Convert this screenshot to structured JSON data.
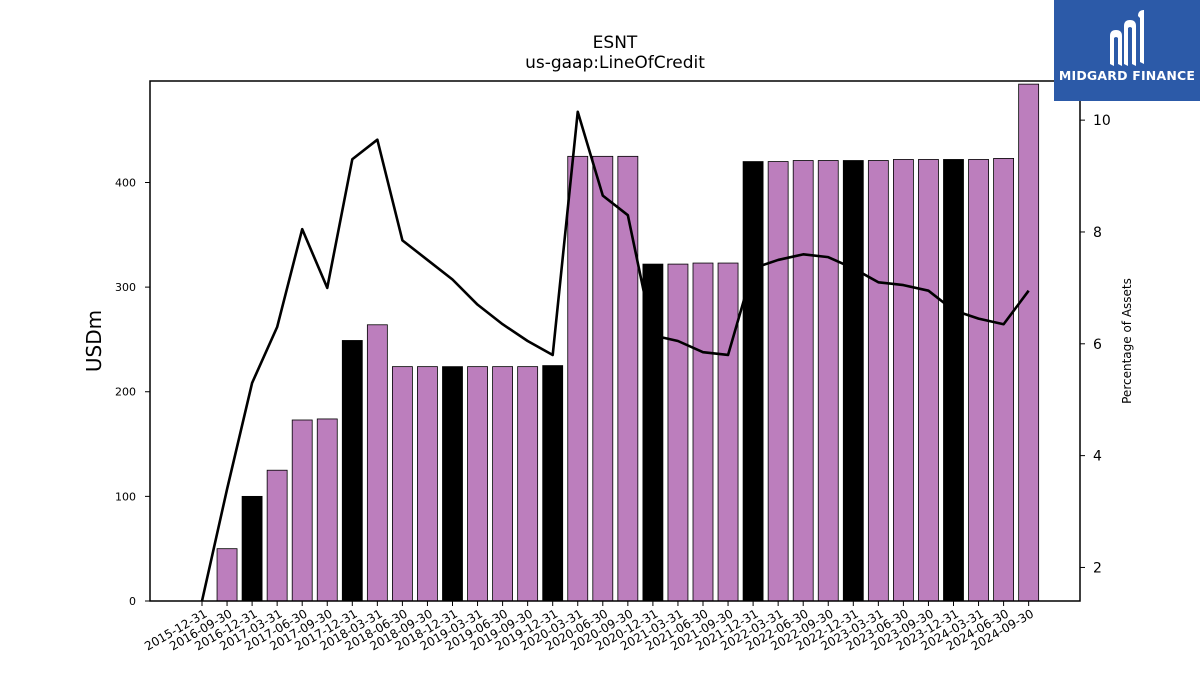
{
  "brand": {
    "name": "MIDGARD FINANCE",
    "color": "#2c5aa8"
  },
  "chart_data": {
    "type": "bar",
    "title": "ESNT",
    "subtitle": "us-gaap:LineOfCredit",
    "ylabel": "USDm",
    "y2label": "Percentage of Assets",
    "ylim": [
      0,
      497
    ],
    "y2lim": [
      1.4,
      10.7
    ],
    "yticks": [
      0,
      100,
      200,
      300,
      400
    ],
    "y2ticks": [
      2,
      4,
      6,
      8,
      10
    ],
    "grid": false,
    "bar_colors": {
      "year_end": "#000000",
      "quarter": "#bc7ebd"
    },
    "categories": [
      "2015-12-31",
      "2016-09-30",
      "2016-12-31",
      "2017-03-31",
      "2017-06-30",
      "2017-09-30",
      "2017-12-31",
      "2018-03-31",
      "2018-06-30",
      "2018-09-30",
      "2018-12-31",
      "2019-03-31",
      "2019-06-30",
      "2019-09-30",
      "2019-12-31",
      "2020-03-31",
      "2020-06-30",
      "2020-09-30",
      "2020-12-31",
      "2021-03-31",
      "2021-06-30",
      "2021-09-30",
      "2021-12-31",
      "2022-03-31",
      "2022-06-30",
      "2022-09-30",
      "2022-12-31",
      "2023-03-31",
      "2023-06-30",
      "2023-09-30",
      "2023-12-31",
      "2024-03-31",
      "2024-06-30",
      "2024-09-30"
    ],
    "series": [
      {
        "type": "bar",
        "values": [
          0,
          50,
          100,
          125,
          173,
          174,
          249,
          264,
          224,
          224,
          224,
          224,
          224,
          224,
          225,
          425,
          425,
          425,
          322,
          322,
          323,
          323,
          420,
          420,
          421,
          421,
          421,
          421,
          422,
          422,
          422,
          422,
          423,
          494
        ]
      },
      {
        "type": "line",
        "axis": "right",
        "color": "#000000",
        "values": [
          1.4,
          3.4,
          5.3,
          6.3,
          8.05,
          7.0,
          9.3,
          9.65,
          7.85,
          7.5,
          7.15,
          6.7,
          6.35,
          6.05,
          5.8,
          10.15,
          8.65,
          8.3,
          6.15,
          6.05,
          5.85,
          5.8,
          7.35,
          7.5,
          7.6,
          7.55,
          7.35,
          7.1,
          7.05,
          6.95,
          6.6,
          6.45,
          6.35,
          6.95
        ]
      }
    ]
  }
}
